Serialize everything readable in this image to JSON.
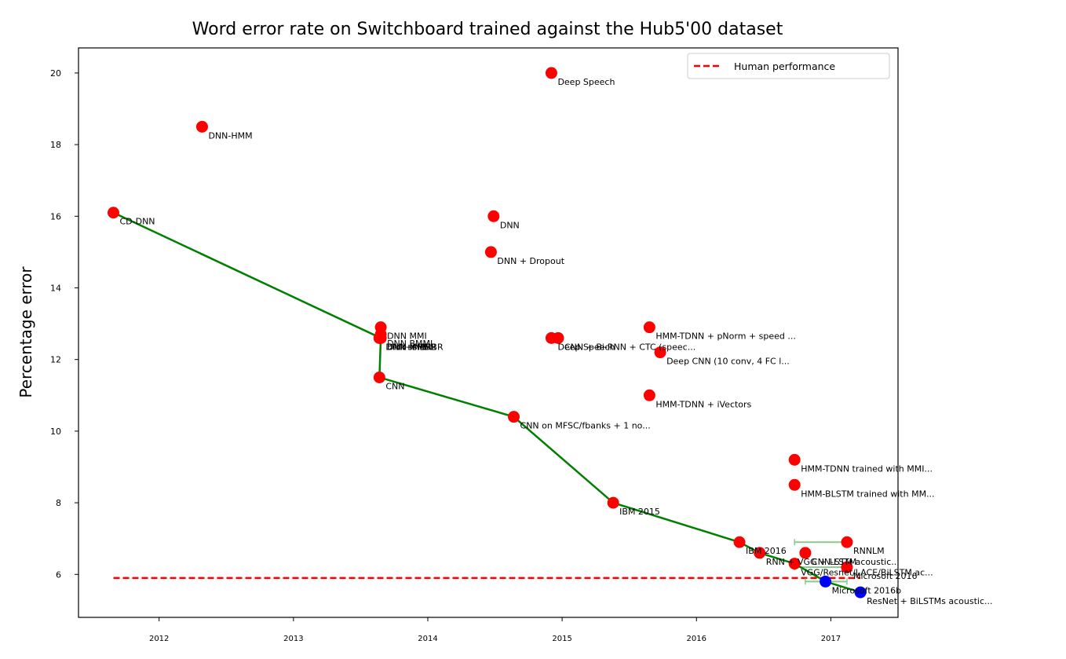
{
  "chart_data": {
    "type": "scatter",
    "title": "Word error rate on Switchboard trained against the Hub5'00 dataset",
    "xlabel": "",
    "ylabel": "Percentage error",
    "xlim": [
      2011.4,
      2017.5
    ],
    "ylim": [
      4.8,
      20.7
    ],
    "xticks": [
      {
        "value": 2012,
        "label": "2012"
      },
      {
        "value": 2013,
        "label": "2013"
      },
      {
        "value": 2014,
        "label": "2014"
      },
      {
        "value": 2015,
        "label": "2015"
      },
      {
        "value": 2016,
        "label": "2016"
      },
      {
        "value": 2017,
        "label": "2017"
      }
    ],
    "yticks": [
      {
        "value": 6,
        "label": "6"
      },
      {
        "value": 8,
        "label": "8"
      },
      {
        "value": 10,
        "label": "10"
      },
      {
        "value": 12,
        "label": "12"
      },
      {
        "value": 14,
        "label": "14"
      },
      {
        "value": 16,
        "label": "16"
      },
      {
        "value": 18,
        "label": "18"
      },
      {
        "value": 20,
        "label": "20"
      }
    ],
    "grid": false,
    "legend": {
      "position": "top-right",
      "entries": [
        {
          "label": "Human performance",
          "color": "#ff0000",
          "style": "dashed"
        }
      ]
    },
    "human_performance": {
      "y": 5.9,
      "x_start": 2011.66,
      "x_end": 2017.22
    },
    "colors": {
      "point": "#ff0000",
      "best": "#0000ff",
      "frontier": "#008000",
      "errorbar": "#88cc88",
      "human": "#ff0000"
    },
    "points": [
      {
        "x": 2012.32,
        "y": 18.5,
        "label": "DNN-HMM"
      },
      {
        "x": 2011.66,
        "y": 16.1,
        "label": "CD-DNN"
      },
      {
        "x": 2014.92,
        "y": 20.0,
        "label": "Deep Speech"
      },
      {
        "x": 2014.49,
        "y": 16.0,
        "label": "DNN"
      },
      {
        "x": 2014.47,
        "y": 15.0,
        "label": "DNN + Dropout"
      },
      {
        "x": 2013.65,
        "y": 12.9,
        "label": "DNN MMI"
      },
      {
        "x": 2013.65,
        "y": 12.7,
        "label": "DNN BMMI"
      },
      {
        "x": 2013.65,
        "y": 12.6,
        "label": "DNN MPE"
      },
      {
        "x": 2013.64,
        "y": 12.6,
        "label": "DNN sMBR"
      },
      {
        "x": 2013.64,
        "y": 12.6,
        "label": "DNN+sMBR"
      },
      {
        "x": 2013.65,
        "y": 12.6,
        "label": "DNN + sMBR"
      },
      {
        "x": 2013.64,
        "y": 11.5,
        "label": "CNN"
      },
      {
        "x": 2014.92,
        "y": 12.6,
        "label": "Deep Speech"
      },
      {
        "x": 2014.97,
        "y": 12.6,
        "label": "CNN + Bi-RNN + CTC (speec..."
      },
      {
        "x": 2015.65,
        "y": 12.9,
        "label": "HMM-TDNN + pNorm + speed ..."
      },
      {
        "x": 2015.73,
        "y": 12.2,
        "label": "Deep CNN (10 conv, 4 FC l..."
      },
      {
        "x": 2015.65,
        "y": 11.0,
        "label": "HMM-TDNN + iVectors"
      },
      {
        "x": 2014.64,
        "y": 10.4,
        "label": "CNN on MFSC/fbanks + 1 no..."
      },
      {
        "x": 2016.73,
        "y": 9.2,
        "label": "HMM-TDNN trained with MMI..."
      },
      {
        "x": 2016.73,
        "y": 8.5,
        "label": "HMM-BLSTM trained with MM..."
      },
      {
        "x": 2015.38,
        "y": 8.0,
        "label": "IBM 2015"
      },
      {
        "x": 2016.32,
        "y": 6.9,
        "label": "IBM 2016"
      },
      {
        "x": 2016.47,
        "y": 6.6,
        "label": "RNN + VGG + LSTM acoustic..."
      },
      {
        "x": 2016.81,
        "y": 6.6,
        "label": "CNN-LSTM"
      },
      {
        "x": 2016.73,
        "y": 6.3,
        "label": "VGG/Resnet/LACE/BiLSTM ac..."
      },
      {
        "x": 2017.12,
        "y": 6.9,
        "label": "RNNLM",
        "err": [
          2016.73,
          2017.12
        ]
      },
      {
        "x": 2017.12,
        "y": 6.2,
        "label": "Microsoft 2016",
        "err": [
          2016.73,
          2017.12
        ]
      },
      {
        "x": 2016.96,
        "y": 5.8,
        "label": "Microsoft 2016b",
        "best": true,
        "err": [
          2016.81,
          2017.12
        ]
      },
      {
        "x": 2017.22,
        "y": 5.5,
        "label": "ResNet + BiLSTMs acoustic...",
        "best": true
      }
    ],
    "frontier": [
      {
        "x": 2011.66,
        "y": 16.1
      },
      {
        "x": 2013.65,
        "y": 12.6
      },
      {
        "x": 2013.64,
        "y": 11.5
      },
      {
        "x": 2014.64,
        "y": 10.4
      },
      {
        "x": 2015.38,
        "y": 8.0
      },
      {
        "x": 2016.32,
        "y": 6.9
      },
      {
        "x": 2016.47,
        "y": 6.6
      },
      {
        "x": 2016.73,
        "y": 6.3
      },
      {
        "x": 2016.96,
        "y": 5.8
      },
      {
        "x": 2017.22,
        "y": 5.5
      }
    ]
  }
}
